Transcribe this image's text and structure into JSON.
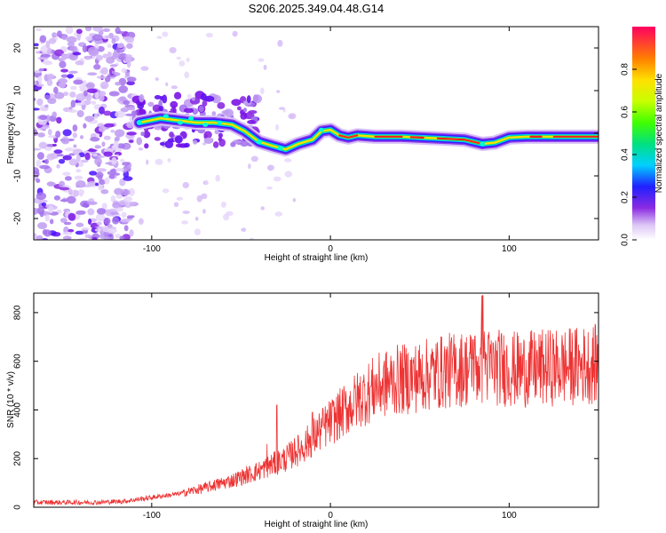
{
  "chart_data": [
    {
      "type": "heatmap",
      "title": "S206.2025.349.04.48.G14",
      "xlabel": "Height of straight line (km)",
      "ylabel": "Frequency (Hz)",
      "xlim": [
        -166,
        150
      ],
      "ylim": [
        -25,
        25
      ],
      "xticks": [
        -100,
        0,
        100
      ],
      "yticks": [
        -20,
        -10,
        0,
        10,
        20
      ],
      "colorbar": {
        "label": "Normalized spectral amplitude",
        "range": [
          0,
          1
        ],
        "ticks": [
          0.0,
          0.2,
          0.4,
          0.6,
          0.8
        ]
      },
      "ridge": [
        {
          "x": -107,
          "f": 2.5
        },
        {
          "x": -95,
          "f": 3.5
        },
        {
          "x": -85,
          "f": 3.0
        },
        {
          "x": -75,
          "f": 2.5
        },
        {
          "x": -65,
          "f": 2.5
        },
        {
          "x": -55,
          "f": 2.0
        },
        {
          "x": -48,
          "f": 0.5
        },
        {
          "x": -40,
          "f": -2.0
        },
        {
          "x": -32,
          "f": -3.0
        },
        {
          "x": -25,
          "f": -3.8
        },
        {
          "x": -18,
          "f": -2.5
        },
        {
          "x": -10,
          "f": -1.5
        },
        {
          "x": -5,
          "f": 0.5
        },
        {
          "x": 0,
          "f": 0.8
        },
        {
          "x": 5,
          "f": -0.5
        },
        {
          "x": 10,
          "f": -1.0
        },
        {
          "x": 15,
          "f": -0.5
        },
        {
          "x": 25,
          "f": -0.8
        },
        {
          "x": 40,
          "f": -0.8
        },
        {
          "x": 60,
          "f": -1.2
        },
        {
          "x": 75,
          "f": -1.5
        },
        {
          "x": 85,
          "f": -2.5
        },
        {
          "x": 92,
          "f": -2.2
        },
        {
          "x": 100,
          "f": -1.0
        },
        {
          "x": 110,
          "f": -0.8
        },
        {
          "x": 125,
          "f": -0.8
        },
        {
          "x": 150,
          "f": -0.8
        }
      ]
    },
    {
      "type": "line",
      "xlabel": "Height of straight line (km)",
      "ylabel": "SNR (10 * v/v)",
      "xlim": [
        -166,
        150
      ],
      "ylim": [
        0,
        880
      ],
      "xticks": [
        -100,
        0,
        100
      ],
      "yticks": [
        0,
        200,
        400,
        600,
        800
      ],
      "series": [
        {
          "name": "SNR",
          "color": "#ee3333",
          "x": [
            -166,
            -150,
            -130,
            -115,
            -100,
            -85,
            -70,
            -55,
            -40,
            -25,
            -15,
            -5,
            5,
            15,
            25,
            35,
            45,
            55,
            65,
            75,
            85,
            95,
            105,
            115,
            125,
            135,
            150
          ],
          "values": [
            20,
            20,
            20,
            25,
            40,
            55,
            80,
            110,
            150,
            200,
            250,
            320,
            380,
            440,
            490,
            520,
            530,
            545,
            560,
            570,
            580,
            575,
            565,
            570,
            575,
            580,
            590
          ]
        }
      ]
    }
  ]
}
